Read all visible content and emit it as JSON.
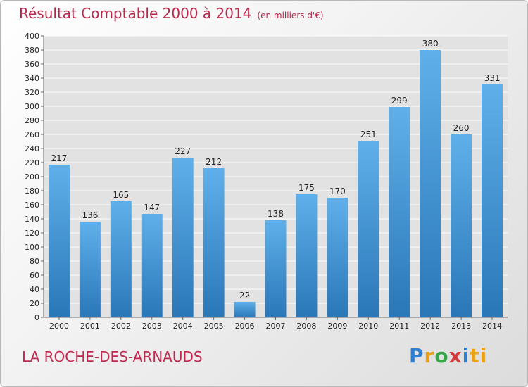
{
  "header": {
    "title": "Résultat Comptable 2000 à 2014",
    "subtitle": "(en milliers d'€)"
  },
  "footer": {
    "place": "LA ROCHE-DES-ARNAUDS",
    "logo_letters": [
      "P",
      "r",
      "o",
      "x",
      "i",
      "ti"
    ]
  },
  "colors": {
    "title": "#b5284a",
    "bar_light": "#5fb0ea",
    "bar_dark": "#2a77b8"
  },
  "chart_data": {
    "type": "bar",
    "title": "Résultat Comptable 2000 à 2014",
    "subtitle": "(en milliers d'€)",
    "categories": [
      "2000",
      "2001",
      "2002",
      "2003",
      "2004",
      "2005",
      "2006",
      "2007",
      "2008",
      "2009",
      "2010",
      "2011",
      "2012",
      "2013",
      "2014"
    ],
    "values": [
      217,
      136,
      165,
      147,
      227,
      212,
      22,
      138,
      175,
      170,
      251,
      299,
      380,
      260,
      331
    ],
    "ylim": [
      0,
      400
    ],
    "ytick_step": 20,
    "grid": true,
    "data_labels": true
  }
}
